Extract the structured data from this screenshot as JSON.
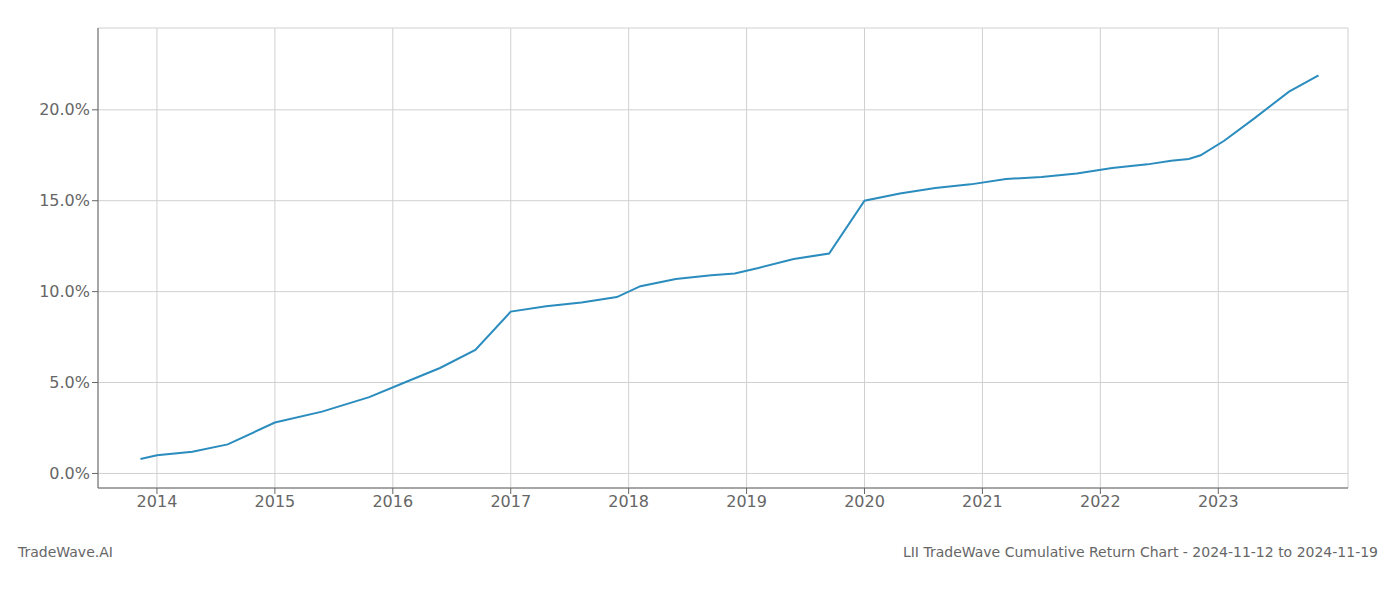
{
  "chart_data": {
    "type": "line",
    "title": "LII TradeWave Cumulative Return Chart - 2024-11-12 to 2024-11-19",
    "annotations": [
      "TradeWave.AI"
    ],
    "x": [
      2013.86,
      2014.0,
      2014.3,
      2014.6,
      2015.0,
      2015.4,
      2015.8,
      2016.1,
      2016.4,
      2016.7,
      2017.0,
      2017.3,
      2017.6,
      2017.9,
      2018.1,
      2018.4,
      2018.7,
      2018.9,
      2019.1,
      2019.4,
      2019.7,
      2020.0,
      2020.3,
      2020.6,
      2020.9,
      2021.2,
      2021.5,
      2021.8,
      2022.1,
      2022.4,
      2022.6,
      2022.75,
      2022.85,
      2023.05,
      2023.3,
      2023.6,
      2023.85
    ],
    "values": [
      0.008,
      0.01,
      0.012,
      0.016,
      0.028,
      0.034,
      0.042,
      0.05,
      0.058,
      0.068,
      0.089,
      0.092,
      0.094,
      0.097,
      0.103,
      0.107,
      0.109,
      0.11,
      0.113,
      0.118,
      0.121,
      0.15,
      0.154,
      0.157,
      0.159,
      0.162,
      0.163,
      0.165,
      0.168,
      0.17,
      0.172,
      0.173,
      0.175,
      0.183,
      0.195,
      0.21,
      0.219
    ],
    "color": "#2b8cbe",
    "xlim": [
      2013.5,
      2024.1
    ],
    "ylim": [
      -0.008,
      0.245
    ],
    "xticks": [
      2014,
      2015,
      2016,
      2017,
      2018,
      2019,
      2020,
      2021,
      2022,
      2023
    ],
    "yticks": [
      {
        "value": 0.0,
        "label": "0.0%"
      },
      {
        "value": 0.05,
        "label": "5.0%"
      },
      {
        "value": 0.1,
        "label": "10.0%"
      },
      {
        "value": 0.15,
        "label": "15.0%"
      },
      {
        "value": 0.2,
        "label": "20.0%"
      }
    ],
    "grid": true
  }
}
